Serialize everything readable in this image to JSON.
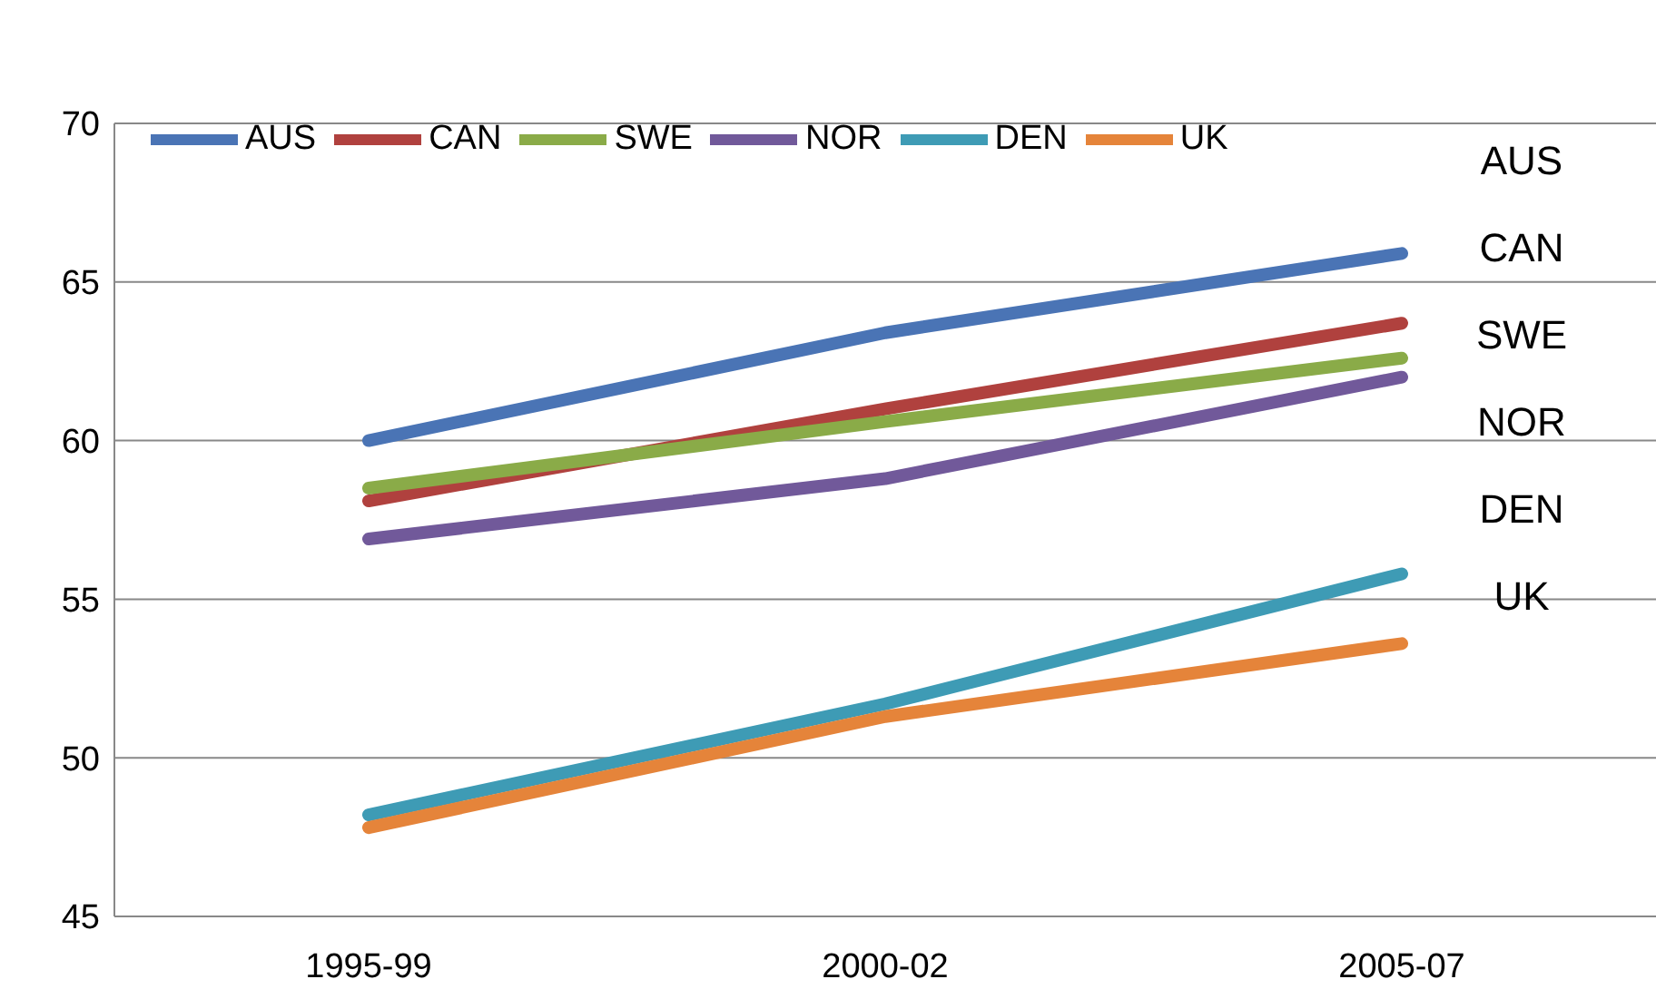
{
  "chart_data": {
    "type": "line",
    "categories": [
      "1995-99",
      "2000-02",
      "2005-07"
    ],
    "series": [
      {
        "name": "AUS",
        "color": "#4a74b5",
        "values": [
          60.0,
          63.4,
          65.9
        ]
      },
      {
        "name": "CAN",
        "color": "#b0413e",
        "values": [
          58.1,
          61.0,
          63.7
        ]
      },
      {
        "name": "SWE",
        "color": "#8aab48",
        "values": [
          58.5,
          60.6,
          62.6
        ]
      },
      {
        "name": "NOR",
        "color": "#71599a",
        "values": [
          56.9,
          58.8,
          62.0
        ]
      },
      {
        "name": "DEN",
        "color": "#3e9bb5",
        "values": [
          48.2,
          51.7,
          55.8
        ]
      },
      {
        "name": "UK",
        "color": "#e5843a",
        "values": [
          47.8,
          51.3,
          53.6
        ]
      }
    ],
    "ylim": [
      45,
      70
    ],
    "yticks": [
      45,
      50,
      55,
      60,
      65,
      70
    ],
    "grid": "y",
    "legend": "top",
    "marker": "none",
    "line_style": "solid",
    "annotations": [
      "AUS",
      "CAN",
      "SWE",
      "NOR",
      "DEN",
      "UK"
    ]
  }
}
